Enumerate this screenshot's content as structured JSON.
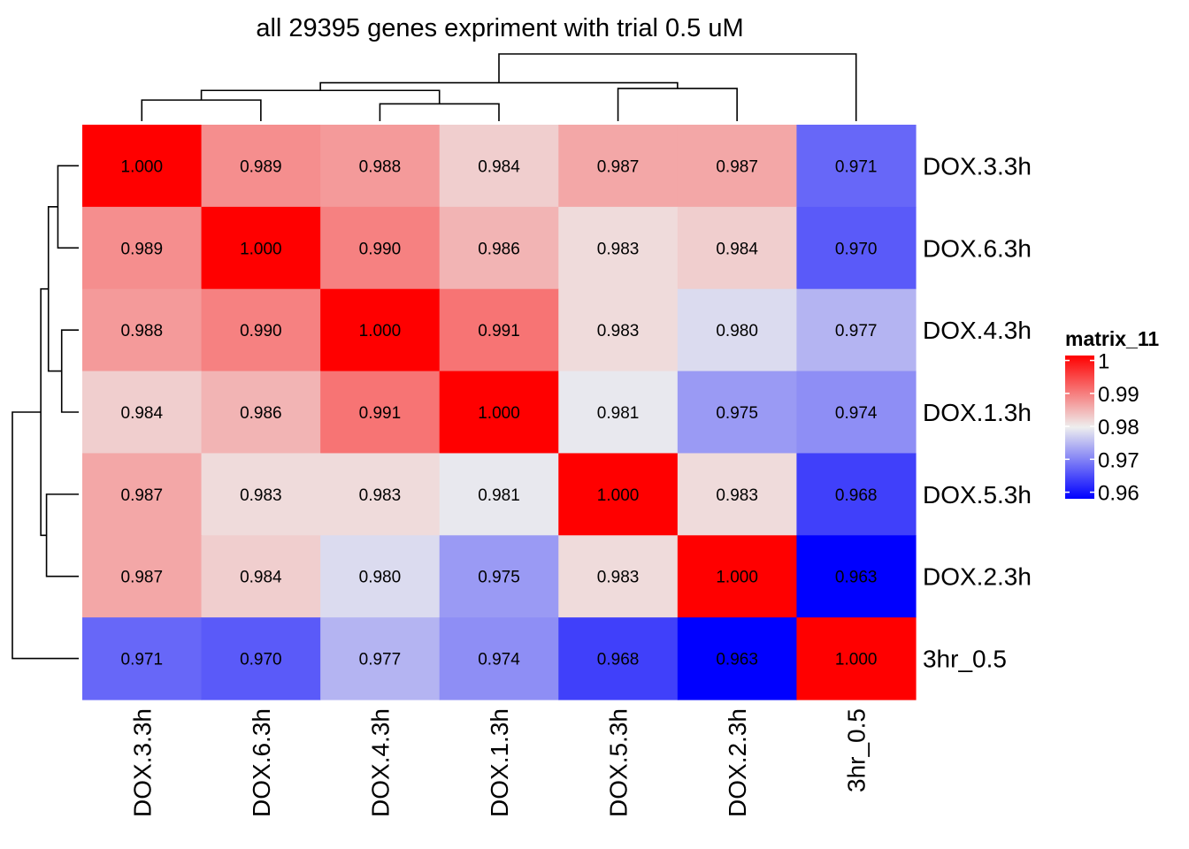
{
  "chart_data": {
    "type": "heatmap",
    "title": "all 29395 genes expriment with trial 0.5 uM",
    "rows": [
      "DOX.3.3h",
      "DOX.6.3h",
      "DOX.4.3h",
      "DOX.1.3h",
      "DOX.5.3h",
      "DOX.2.3h",
      "3hr_0.5"
    ],
    "columns": [
      "DOX.3.3h",
      "DOX.6.3h",
      "DOX.4.3h",
      "DOX.1.3h",
      "DOX.5.3h",
      "DOX.2.3h",
      "3hr_0.5"
    ],
    "values": [
      [
        1.0,
        0.989,
        0.988,
        0.984,
        0.987,
        0.987,
        0.971
      ],
      [
        0.989,
        1.0,
        0.99,
        0.986,
        0.983,
        0.984,
        0.97
      ],
      [
        0.988,
        0.99,
        1.0,
        0.991,
        0.983,
        0.98,
        0.977
      ],
      [
        0.984,
        0.986,
        0.991,
        1.0,
        0.981,
        0.975,
        0.974
      ],
      [
        0.987,
        0.983,
        0.983,
        0.981,
        1.0,
        0.983,
        0.968
      ],
      [
        0.987,
        0.984,
        0.98,
        0.975,
        0.983,
        1.0,
        0.963
      ],
      [
        0.971,
        0.97,
        0.977,
        0.974,
        0.968,
        0.963,
        1.0
      ]
    ],
    "cell_labels": [
      [
        "1.000",
        "0.989",
        "0.988",
        "0.984",
        "0.987",
        "0.987",
        "0.971"
      ],
      [
        "0.989",
        "1.000",
        "0.990",
        "0.986",
        "0.983",
        "0.984",
        "0.970"
      ],
      [
        "0.988",
        "0.990",
        "1.000",
        "0.991",
        "0.983",
        "0.980",
        "0.977"
      ],
      [
        "0.984",
        "0.986",
        "0.991",
        "1.000",
        "0.981",
        "0.975",
        "0.974"
      ],
      [
        "0.987",
        "0.983",
        "0.983",
        "0.981",
        "1.000",
        "0.983",
        "0.968"
      ],
      [
        "0.987",
        "0.984",
        "0.980",
        "0.975",
        "0.983",
        "1.000",
        "0.963"
      ],
      [
        "0.971",
        "0.970",
        "0.977",
        "0.974",
        "0.968",
        "0.963",
        "1.000"
      ]
    ],
    "color_scale": {
      "low": "#0000FF",
      "mid": "#EEEEEE",
      "high": "#FF0000",
      "low_value": 0.963,
      "mid_value": 0.9815,
      "high_value": 1.0
    },
    "legend": {
      "title": "matrix_11",
      "ticks": [
        "1",
        "0.99",
        "0.98",
        "0.97",
        "0.96"
      ],
      "tick_values": [
        1.0,
        0.99,
        0.98,
        0.97,
        0.96
      ],
      "placement": "right"
    },
    "dendrogram": {
      "leaf_order": [
        "DOX.3.3h",
        "DOX.6.3h",
        "DOX.4.3h",
        "DOX.1.3h",
        "DOX.5.3h",
        "DOX.2.3h",
        "3hr_0.5"
      ],
      "merges": [
        {
          "a": 0,
          "b": 1,
          "height": 0.011
        },
        {
          "a": 2,
          "b": 3,
          "height": 0.009
        },
        {
          "a": 4,
          "b": 5,
          "height": 0.017
        },
        {
          "a": 7,
          "b": 8,
          "height": 0.016
        },
        {
          "a": 10,
          "b": 9,
          "height": 0.02
        },
        {
          "a": 11,
          "b": 6,
          "height": 0.035
        }
      ]
    }
  }
}
